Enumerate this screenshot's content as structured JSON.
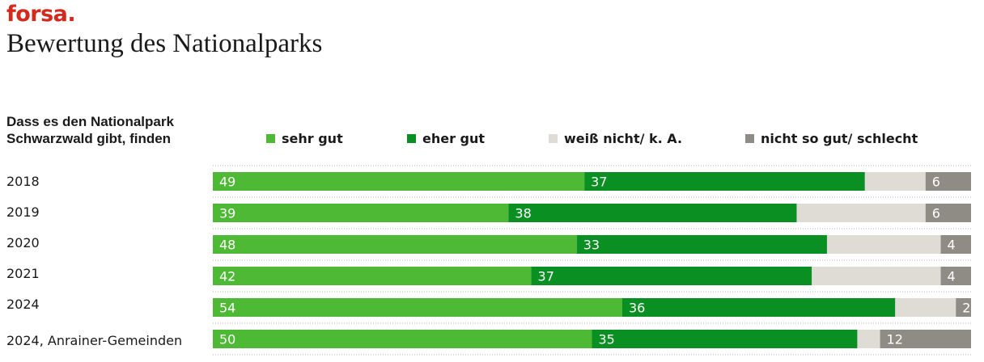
{
  "header": {
    "brand": "forsa.",
    "title": "Bewertung des Nationalparks"
  },
  "question": {
    "line1": "Dass es den Nationalpark",
    "line2": "Schwarzwald gibt, finden"
  },
  "colors": {
    "brand": "#d42a1e",
    "sehr_gut": "#4db935",
    "eher_gut": "#0a8f22",
    "weiss_nicht": "#dfdcd6",
    "nicht_so_gut": "#8f8c85"
  },
  "chart_data": {
    "type": "bar",
    "orientation": "horizontal",
    "stacked": true,
    "percent_scale": [
      0,
      100
    ],
    "categories": [
      "2018",
      "2019",
      "2020",
      "2021",
      "2024",
      "2024, Anrainer-Gemeinden"
    ],
    "series": [
      {
        "name": "sehr gut",
        "color": "#4db935",
        "values": [
          49,
          39,
          48,
          42,
          54,
          50
        ],
        "show_labels": true
      },
      {
        "name": "eher gut",
        "color": "#0a8f22",
        "values": [
          37,
          38,
          33,
          37,
          36,
          35
        ],
        "show_labels": true
      },
      {
        "name": "weiß nicht/ k. A.",
        "color": "#dfdcd6",
        "values": [
          8,
          17,
          15,
          17,
          8,
          3
        ],
        "show_labels": false
      },
      {
        "name": "nicht so gut/ schlecht",
        "color": "#8f8c85",
        "values": [
          6,
          6,
          4,
          4,
          2,
          12
        ],
        "show_labels": true
      }
    ],
    "legend_position": "top"
  }
}
